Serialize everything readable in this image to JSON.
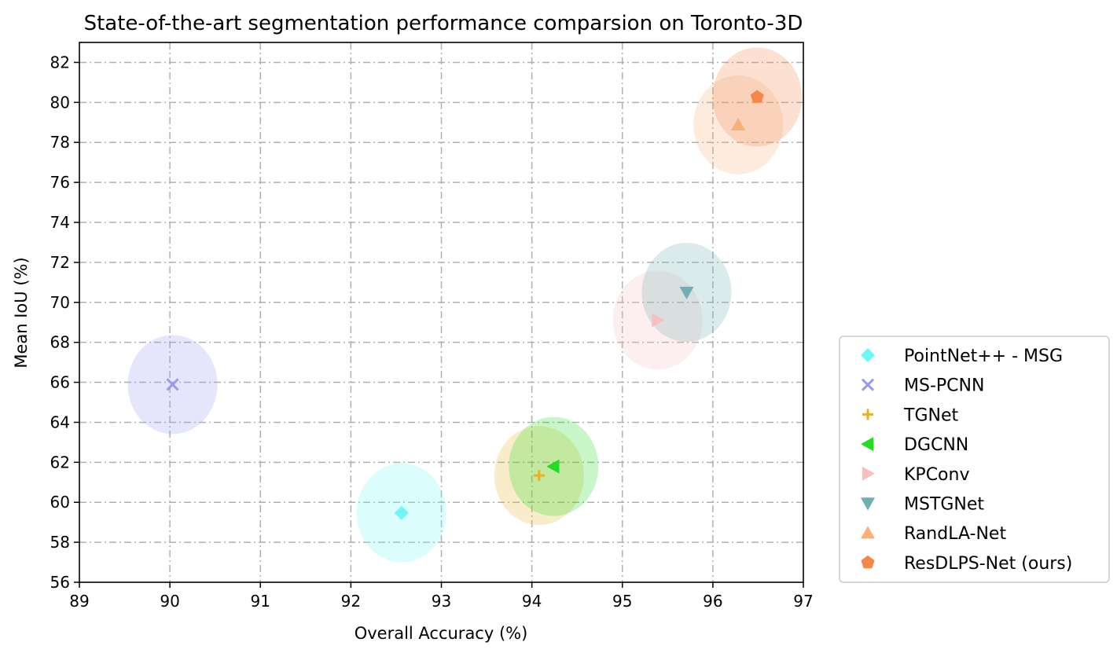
{
  "chart_data": {
    "type": "scatter",
    "title": "State-of-the-art segmentation performance comparsion on Toronto-3D",
    "xlabel": "Overall Accuracy (%)",
    "ylabel": "Mean IoU (%)",
    "xlim": [
      89,
      97
    ],
    "ylim": [
      56,
      83
    ],
    "xticks": [
      89,
      90,
      91,
      92,
      93,
      94,
      95,
      96,
      97
    ],
    "yticks": [
      56,
      58,
      60,
      62,
      64,
      66,
      68,
      70,
      72,
      74,
      76,
      78,
      80,
      82
    ],
    "grid": true,
    "legend_position": "lower-right-outside",
    "series": [
      {
        "name": "PointNet++ - MSG",
        "x": 92.56,
        "y": 59.47,
        "marker": "diamond",
        "color": "#6ff7f7"
      },
      {
        "name": "MS-PCNN",
        "x": 90.03,
        "y": 65.89,
        "marker": "x",
        "color": "#9999ee"
      },
      {
        "name": "TGNet",
        "x": 94.08,
        "y": 61.34,
        "marker": "plus",
        "color": "#e5b32a"
      },
      {
        "name": "DGCNN",
        "x": 94.24,
        "y": 61.79,
        "marker": "triangle-left",
        "color": "#22dd22"
      },
      {
        "name": "KPConv",
        "x": 95.39,
        "y": 69.11,
        "marker": "triangle-right",
        "color": "#f7c0c0"
      },
      {
        "name": "MSTGNet",
        "x": 95.71,
        "y": 70.5,
        "marker": "triangle-down",
        "color": "#6fb0b0"
      },
      {
        "name": "RandLA-Net",
        "x": 96.28,
        "y": 78.88,
        "marker": "triangle-up",
        "color": "#f7b07a"
      },
      {
        "name": "ResDLPS-Net (ours)",
        "x": 96.49,
        "y": 80.27,
        "marker": "pentagon",
        "color": "#f5874a"
      }
    ]
  }
}
